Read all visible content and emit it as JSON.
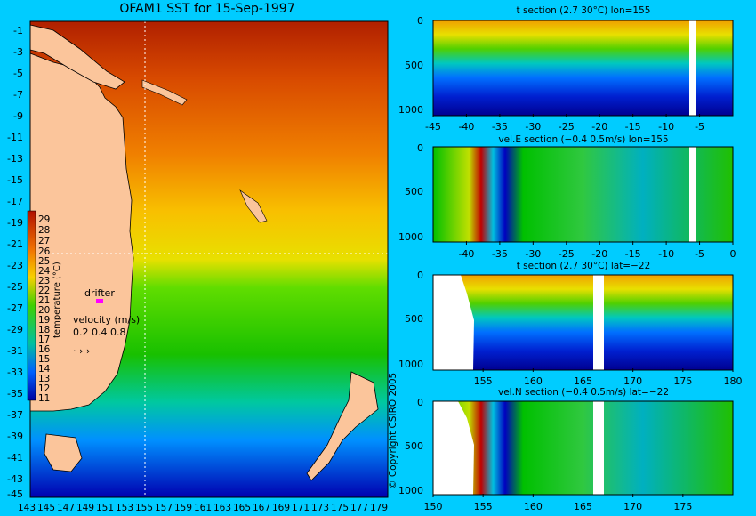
{
  "main_map": {
    "title": "OFAM1 SST for 15-Sep-1997",
    "y_ticks": [
      "-1",
      "-3",
      "-5",
      "-7",
      "-9",
      "-11",
      "-13",
      "-15",
      "-17",
      "-19",
      "-21",
      "-23",
      "-25",
      "-27",
      "-29",
      "-31",
      "-33",
      "-35",
      "-37",
      "-39",
      "-41",
      "-43",
      "-45"
    ],
    "x_ticks": [
      "143",
      "145",
      "147",
      "149",
      "151",
      "153",
      "155",
      "157",
      "159",
      "161",
      "163",
      "165",
      "167",
      "169",
      "171",
      "173",
      "175",
      "177",
      "179"
    ],
    "colorbar_label": "temperature (°C)",
    "colorbar_ticks": [
      "29",
      "28",
      "27",
      "26",
      "25",
      "24",
      "23",
      "22",
      "21",
      "20",
      "19",
      "18",
      "17",
      "16",
      "15",
      "14",
      "13",
      "12",
      "11"
    ],
    "drifter_label": "drifter",
    "velocity_label": "velocity (m/s)",
    "velocity_values": "0.2 0.4 0.8",
    "copyright": "© Copyright CSIRO 2005"
  },
  "chart_data": [
    {
      "type": "heatmap",
      "title": "t section (2.7      30°C) lon=155",
      "x_ticks": [
        "-45",
        "-40",
        "-35",
        "-30",
        "-25",
        "-20",
        "-15",
        "-10",
        "-5"
      ],
      "y_ticks": [
        "0",
        "500",
        "1000"
      ],
      "xlim": [
        -45,
        0
      ],
      "ylim": [
        1050,
        0
      ]
    },
    {
      "type": "heatmap",
      "title": "vel.E section (−0.4     0.5m/s) lon=155",
      "x_ticks": [
        "-40",
        "-35",
        "-30",
        "-25",
        "-20",
        "-15",
        "-10",
        "-5",
        "0"
      ],
      "y_ticks": [
        "0",
        "500",
        "1000"
      ],
      "xlim": [
        -45,
        0
      ],
      "ylim": [
        1050,
        0
      ]
    },
    {
      "type": "heatmap",
      "title": "t section (2.7      30°C) lat=−22",
      "x_ticks": [
        "155",
        "160",
        "165",
        "170",
        "175",
        "180"
      ],
      "y_ticks": [
        "0",
        "500",
        "1000"
      ],
      "xlim": [
        150,
        180
      ],
      "ylim": [
        1050,
        0
      ]
    },
    {
      "type": "heatmap",
      "title": "vel.N section (−0.4     0.5m/s) lat=−22",
      "x_ticks": [
        "150",
        "155",
        "160",
        "165",
        "170",
        "175"
      ],
      "y_ticks": [
        "0",
        "500",
        "1000"
      ],
      "xlim": [
        150,
        180
      ],
      "ylim": [
        1050,
        0
      ]
    }
  ]
}
